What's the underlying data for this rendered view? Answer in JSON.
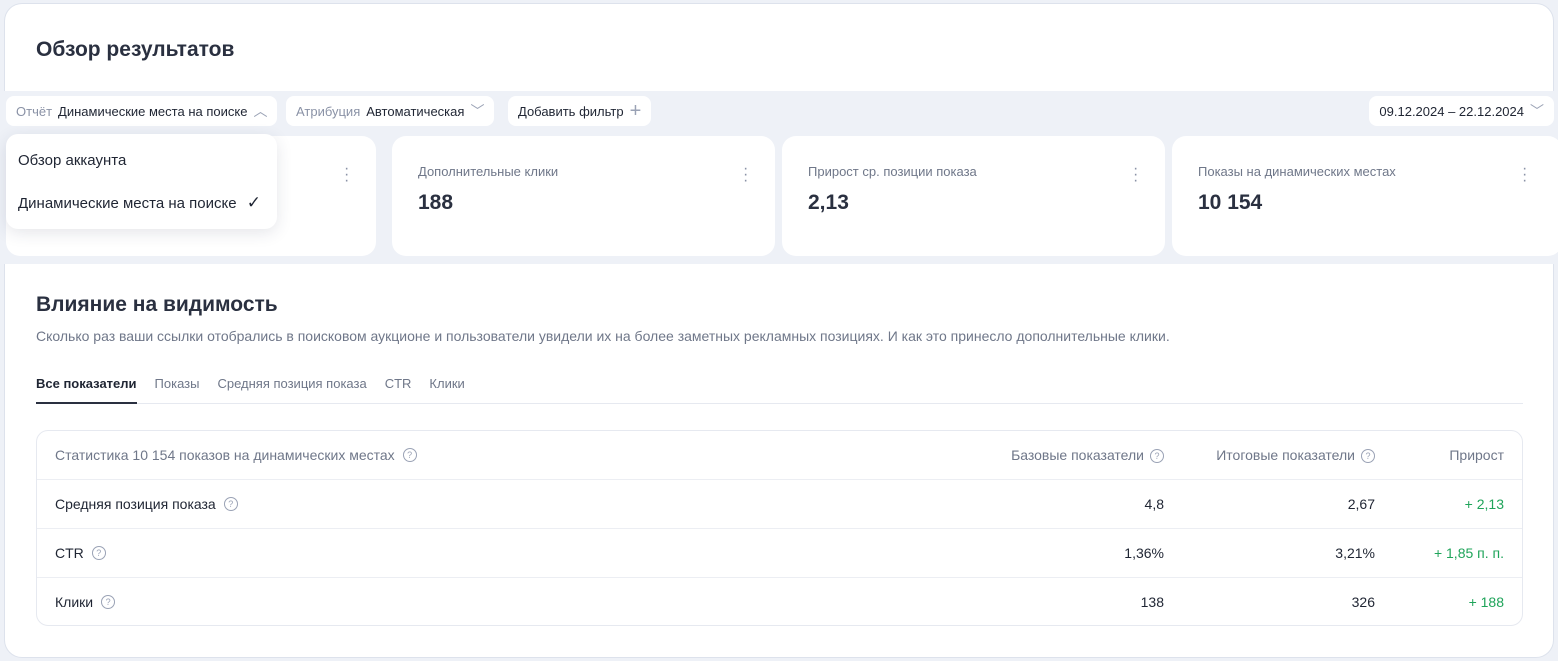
{
  "header": {
    "title": "Обзор результатов"
  },
  "filters": {
    "report": {
      "label": "Отчёт",
      "value": "Динамические места на поиске"
    },
    "attribution": {
      "label": "Атрибуция",
      "value": "Автоматическая"
    },
    "add_filter": "Добавить фильтр",
    "date_range": "09.12.2024 – 22.12.2024"
  },
  "report_dropdown": {
    "options": [
      "Обзор аккаунта",
      "Динамические места на поиске"
    ],
    "selected": "Динамические места на поиске"
  },
  "metric_cards": [
    {
      "label": "Дополнительные клики",
      "value": "188"
    },
    {
      "label": "Прирост ср. позиции показа",
      "value": "2,13"
    },
    {
      "label": "Показы на динамических местах",
      "value": "10 154"
    }
  ],
  "visibility": {
    "title": "Влияние на видимость",
    "description": "Сколько раз ваши ссылки отобрались в поисковом аукционе и пользователи увидели их на более заметных рекламных позициях. И как это принесло дополнительные клики.",
    "tabs": [
      "Все показатели",
      "Показы",
      "Средняя позиция показа",
      "CTR",
      "Клики"
    ],
    "active_tab": "Все показатели",
    "table": {
      "headers": [
        "Статистика 10 154 показов на динамических местах",
        "Базовые показатели",
        "Итоговые показатели",
        "Прирост"
      ],
      "rows": [
        [
          "Средняя позиция показа",
          "4,8",
          "2,67",
          "+ 2,13"
        ],
        [
          "CTR",
          "1,36%",
          "3,21%",
          "+ 1,85 п. п."
        ],
        [
          "Клики",
          "138",
          "326",
          "+ 188"
        ]
      ]
    }
  },
  "colors": {
    "positive": "#1fa45a",
    "background": "#eef1f7"
  }
}
